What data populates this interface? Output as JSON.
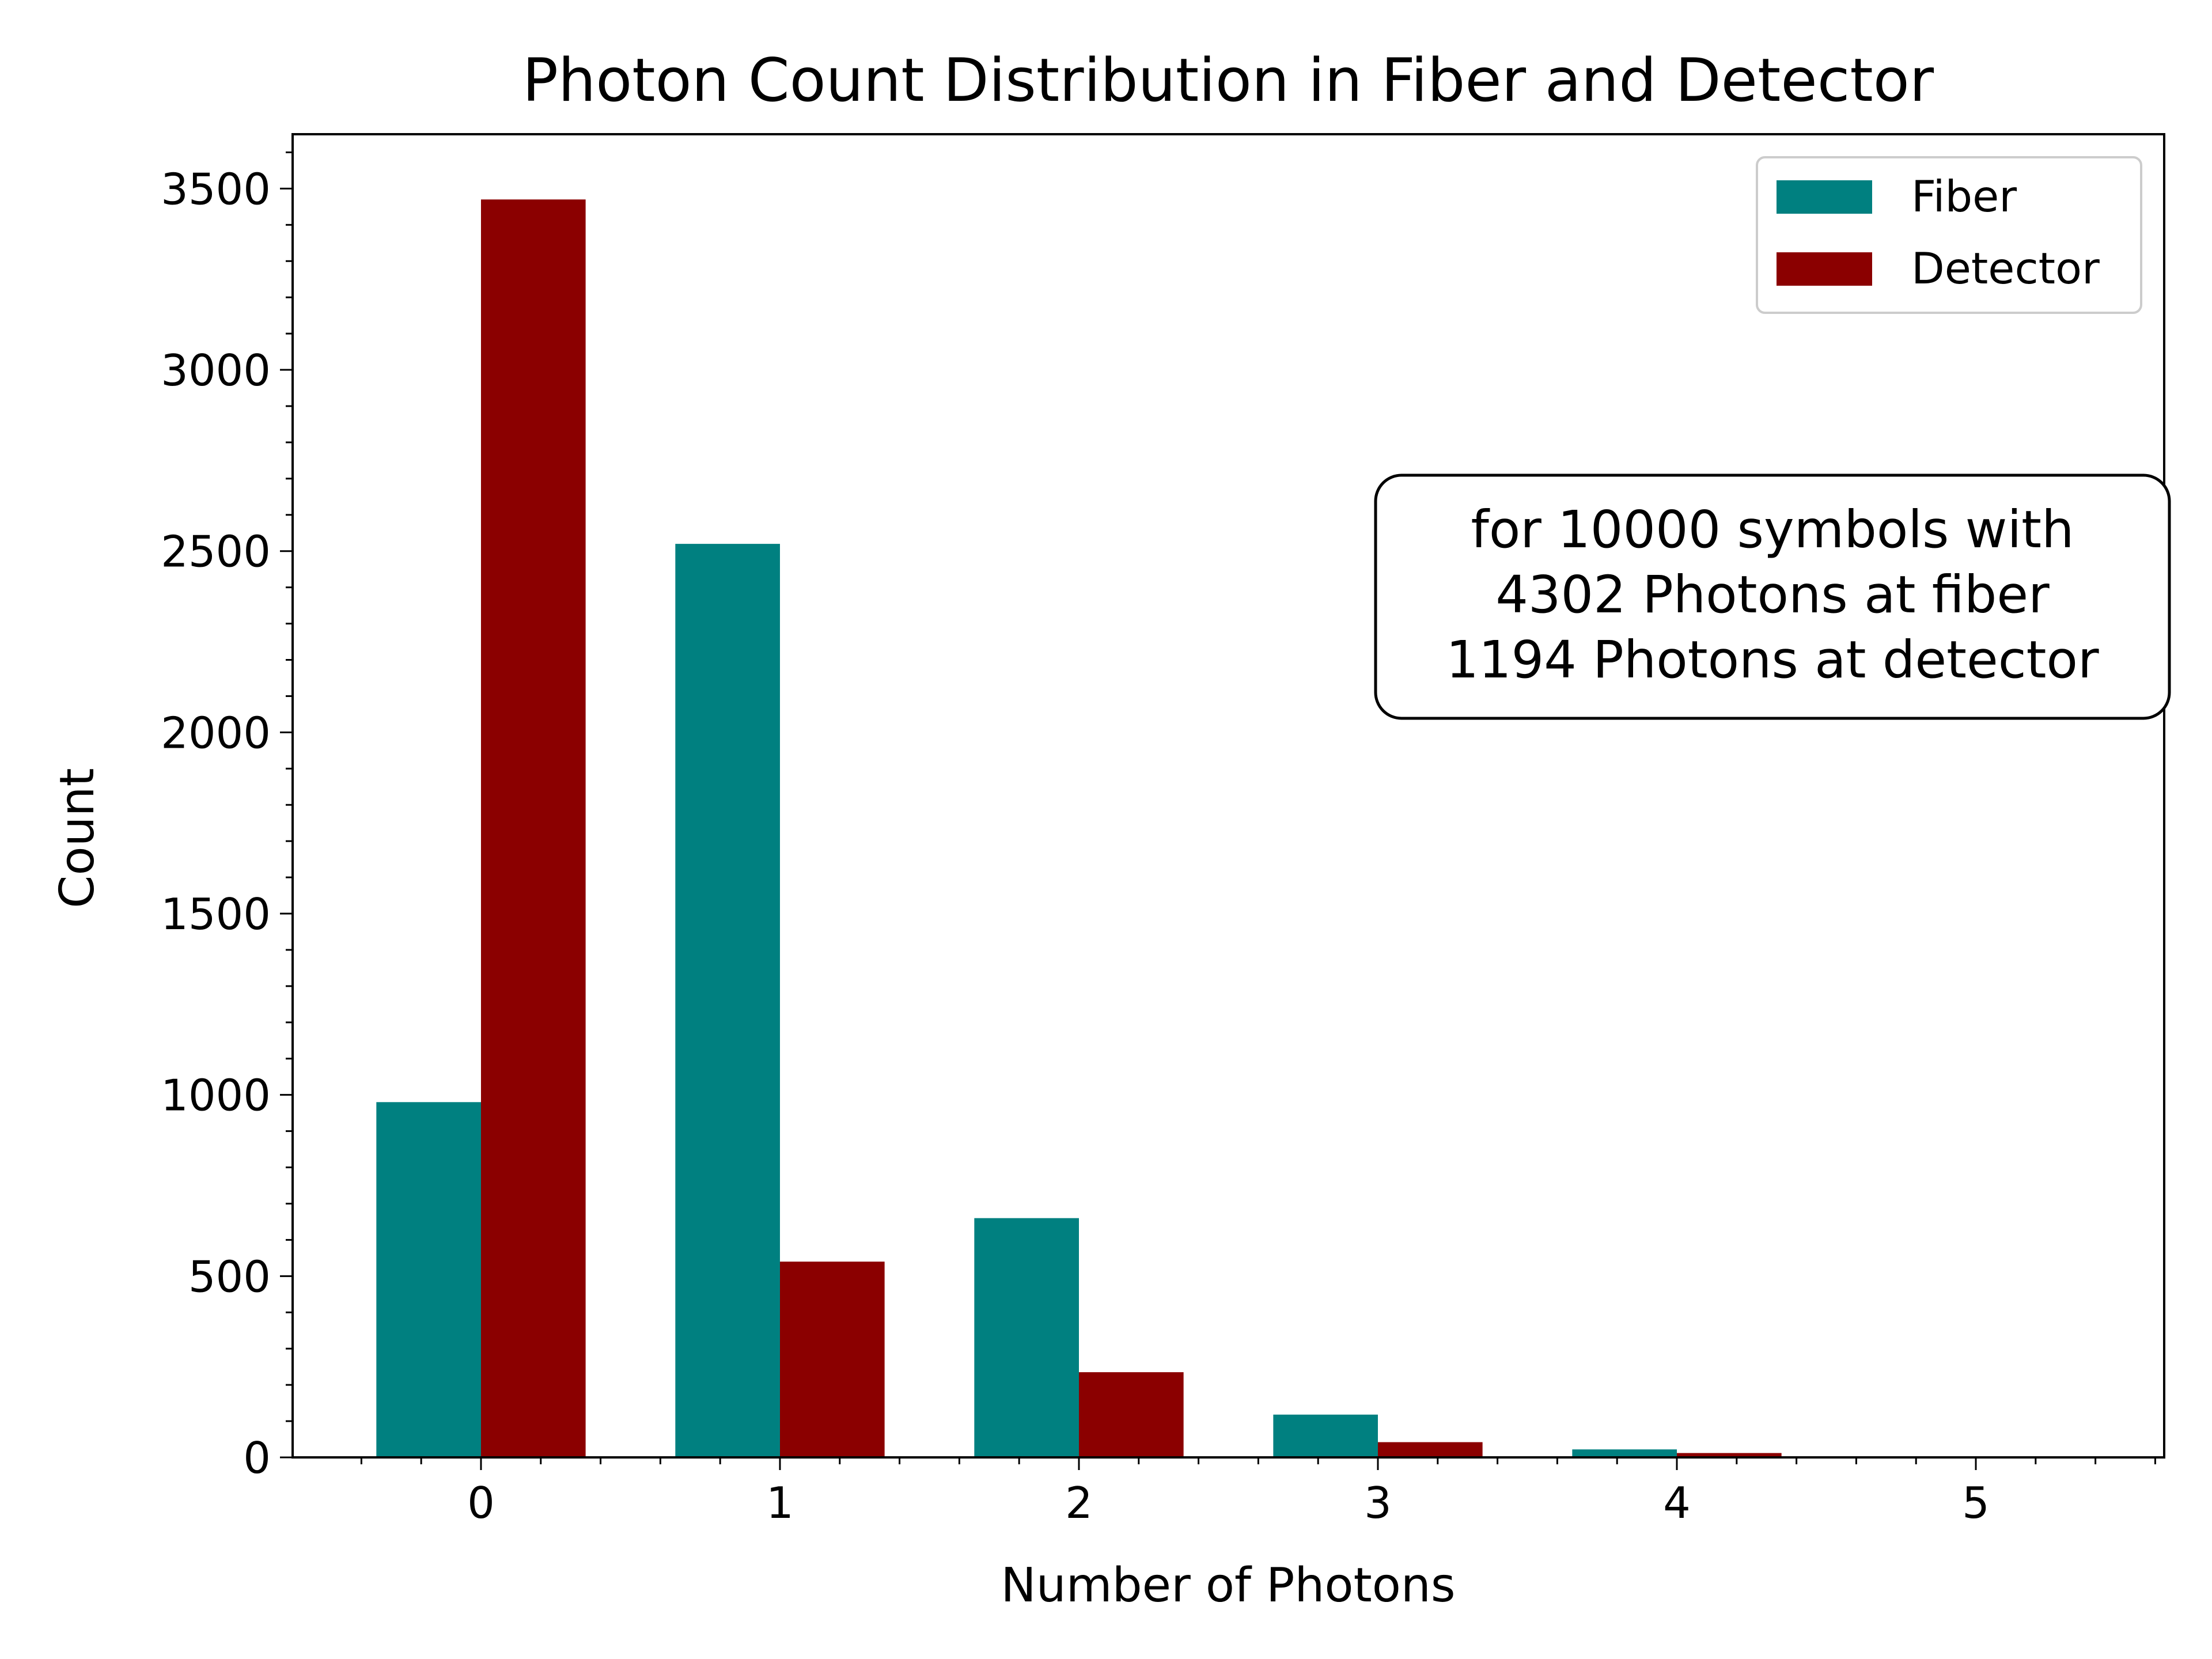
{
  "chart_data": {
    "type": "bar",
    "title": "Photon Count Distribution in Fiber and Detector",
    "xlabel": "Number of Photons",
    "ylabel": "Count",
    "categories": [
      "0",
      "1",
      "2",
      "3",
      "4",
      "5"
    ],
    "x_ticks": [
      "0",
      "1",
      "2",
      "3",
      "4",
      "5"
    ],
    "y_ticks": [
      "0",
      "500",
      "1000",
      "1500",
      "2000",
      "2500",
      "3000",
      "3500"
    ],
    "xlim": [
      -0.63,
      5.63
    ],
    "ylim": [
      0,
      3650
    ],
    "series": [
      {
        "name": "Fiber",
        "color": "#008080",
        "values": [
          980,
          2520,
          660,
          118,
          22,
          2
        ]
      },
      {
        "name": "Detector",
        "color": "#8b0000",
        "values": [
          3470,
          540,
          235,
          42,
          12,
          1
        ]
      }
    ],
    "legend_position": "top-right",
    "annotation": [
      "for 10000 symbols with",
      "4302 Photons at fiber",
      "1194 Photons at detector"
    ],
    "grid": false
  }
}
